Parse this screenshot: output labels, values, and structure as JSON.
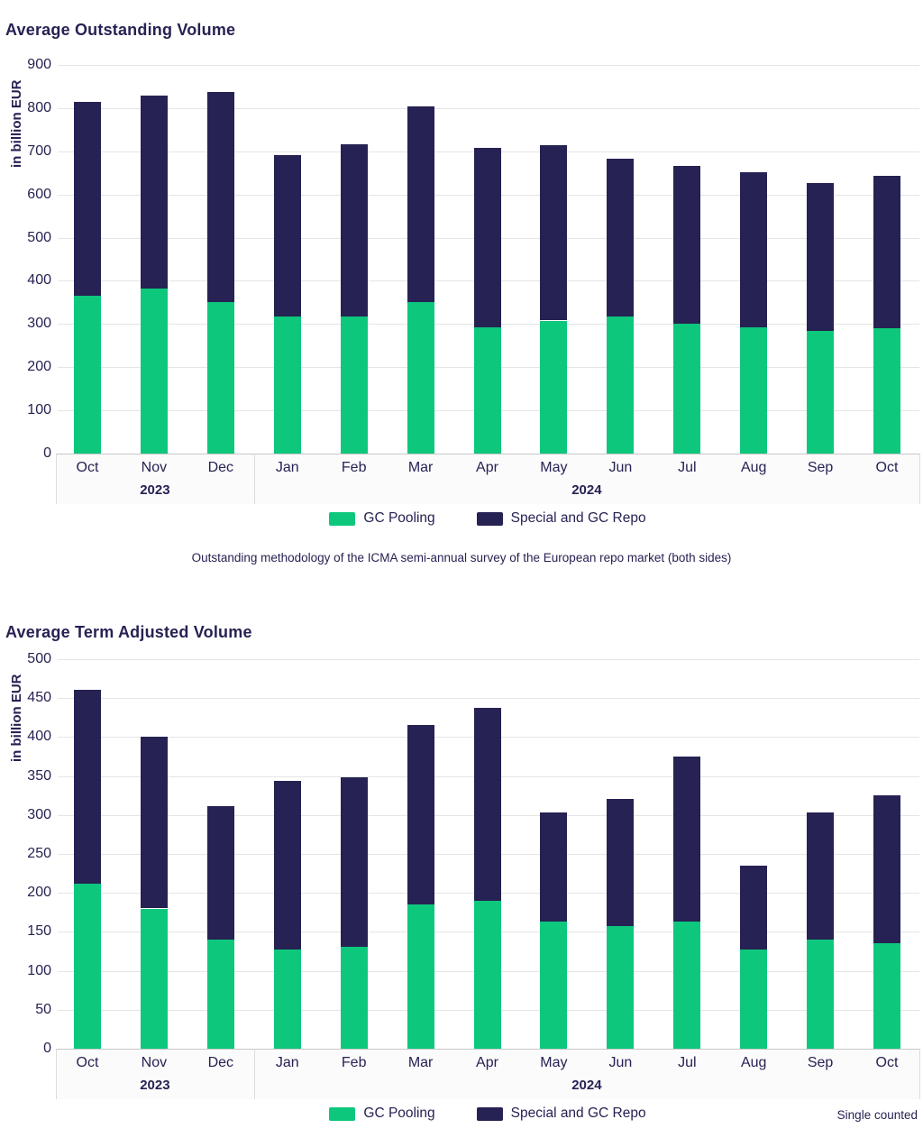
{
  "page": {
    "background": "#ffffff",
    "text_color": "#262253",
    "gridline_color": "#e5e5e5"
  },
  "chart_data": [
    {
      "type": "bar",
      "stacked": true,
      "title": "Average Outstanding Volume",
      "ylabel": "in billion EUR",
      "ylim": [
        0,
        900
      ],
      "ytick": 100,
      "grid": true,
      "legend_position": "bottom-center",
      "categories": [
        "Oct",
        "Nov",
        "Dec",
        "Jan",
        "Feb",
        "Mar",
        "Apr",
        "May",
        "Jun",
        "Jul",
        "Aug",
        "Sep",
        "Oct"
      ],
      "year_groups": [
        {
          "label": "2023",
          "from": 0,
          "to": 2
        },
        {
          "label": "2024",
          "from": 3,
          "to": 12
        }
      ],
      "series": [
        {
          "name": "GC Pooling",
          "color": "#0dc87c",
          "values": [
            366,
            383,
            350,
            318,
            317,
            350,
            293,
            308,
            317,
            301,
            293,
            284,
            291
          ]
        },
        {
          "name": "Special and GC Repo",
          "color": "#262253",
          "values": [
            448,
            447,
            488,
            374,
            399,
            455,
            415,
            407,
            366,
            366,
            358,
            343,
            352
          ]
        }
      ],
      "totals": [
        814,
        830,
        838,
        692,
        716,
        805,
        708,
        715,
        683,
        667,
        651,
        627,
        643
      ],
      "footnote": "Outstanding methodology of the ICMA semi-annual survey of the European repo market (both sides)"
    },
    {
      "type": "bar",
      "stacked": true,
      "title": "Average Term Adjusted Volume",
      "ylabel": "in billion EUR",
      "ylim": [
        0,
        500
      ],
      "ytick": 50,
      "grid": true,
      "legend_position": "bottom-center",
      "categories": [
        "Oct",
        "Nov",
        "Dec",
        "Jan",
        "Feb",
        "Mar",
        "Apr",
        "May",
        "Jun",
        "Jul",
        "Aug",
        "Sep",
        "Oct"
      ],
      "year_groups": [
        {
          "label": "2023",
          "from": 0,
          "to": 2
        },
        {
          "label": "2024",
          "from": 3,
          "to": 12
        }
      ],
      "series": [
        {
          "name": "GC Pooling",
          "color": "#0dc87c",
          "values": [
            212,
            180,
            140,
            127,
            131,
            185,
            190,
            163,
            157,
            163,
            127,
            140,
            135
          ]
        },
        {
          "name": "Special and GC Repo",
          "color": "#262253",
          "values": [
            249,
            221,
            171,
            217,
            217,
            230,
            248,
            140,
            164,
            212,
            108,
            163,
            190
          ]
        }
      ],
      "totals": [
        461,
        401,
        311,
        344,
        348,
        415,
        438,
        303,
        321,
        375,
        235,
        303,
        325
      ],
      "footnote_right": "Single counted"
    }
  ]
}
